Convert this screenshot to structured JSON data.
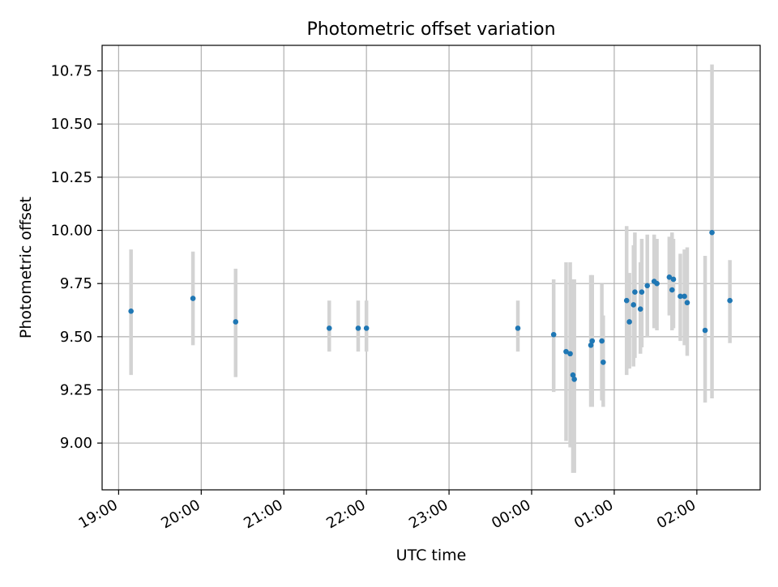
{
  "chart_data": {
    "type": "scatter",
    "title": "Photometric offset variation",
    "xlabel": "UTC time",
    "ylabel": "Photometric offset",
    "x_unit": "UTC clock time (hours after 00:00 of first day; values past 24 are next day)",
    "xlim": [
      "18:48",
      "02:46"
    ],
    "ylim": [
      8.78,
      10.87
    ],
    "x_ticks": [
      "19:00",
      "20:00",
      "21:00",
      "22:00",
      "23:00",
      "00:00",
      "01:00",
      "02:00"
    ],
    "y_ticks": [
      "9.00",
      "9.25",
      "9.50",
      "9.75",
      "10.00",
      "10.25",
      "10.50",
      "10.75"
    ],
    "grid": true,
    "marker_color": "#1f77b4",
    "errorbar_color": "#d3d3d3",
    "points": [
      {
        "t": "19:09",
        "y": 9.62,
        "ylo": 9.32,
        "yhi": 9.91
      },
      {
        "t": "19:54",
        "y": 9.68,
        "ylo": 9.46,
        "yhi": 9.9
      },
      {
        "t": "20:25",
        "y": 9.57,
        "ylo": 9.31,
        "yhi": 9.82
      },
      {
        "t": "21:33",
        "y": 9.54,
        "ylo": 9.43,
        "yhi": 9.67
      },
      {
        "t": "21:54",
        "y": 9.54,
        "ylo": 9.43,
        "yhi": 9.67
      },
      {
        "t": "22:00",
        "y": 9.54,
        "ylo": 9.43,
        "yhi": 9.67
      },
      {
        "t": "23:50",
        "y": 9.54,
        "ylo": 9.43,
        "yhi": 9.67
      },
      {
        "t": "00:16",
        "y": 9.51,
        "ylo": 9.24,
        "yhi": 9.77
      },
      {
        "t": "00:25",
        "y": 9.43,
        "ylo": 9.01,
        "yhi": 9.85
      },
      {
        "t": "00:28",
        "y": 9.42,
        "ylo": 8.98,
        "yhi": 9.85
      },
      {
        "t": "00:30",
        "y": 9.32,
        "ylo": 8.86,
        "yhi": 9.77
      },
      {
        "t": "00:31",
        "y": 9.3,
        "ylo": 8.86,
        "yhi": 9.77
      },
      {
        "t": "00:43",
        "y": 9.46,
        "ylo": 9.17,
        "yhi": 9.79
      },
      {
        "t": "00:44",
        "y": 9.48,
        "ylo": 9.17,
        "yhi": 9.79
      },
      {
        "t": "00:51",
        "y": 9.48,
        "ylo": 9.2,
        "yhi": 9.75
      },
      {
        "t": "00:52",
        "y": 9.38,
        "ylo": 9.17,
        "yhi": 9.6
      },
      {
        "t": "01:09",
        "y": 9.67,
        "ylo": 9.32,
        "yhi": 10.02
      },
      {
        "t": "01:11",
        "y": 9.57,
        "ylo": 9.35,
        "yhi": 9.8
      },
      {
        "t": "01:14",
        "y": 9.65,
        "ylo": 9.36,
        "yhi": 9.93
      },
      {
        "t": "01:15",
        "y": 9.71,
        "ylo": 9.4,
        "yhi": 9.99
      },
      {
        "t": "01:19",
        "y": 9.63,
        "ylo": 9.42,
        "yhi": 9.85
      },
      {
        "t": "01:20",
        "y": 9.71,
        "ylo": 9.45,
        "yhi": 9.96
      },
      {
        "t": "01:24",
        "y": 9.74,
        "ylo": 9.5,
        "yhi": 9.98
      },
      {
        "t": "01:29",
        "y": 9.76,
        "ylo": 9.54,
        "yhi": 9.98
      },
      {
        "t": "01:31",
        "y": 9.75,
        "ylo": 9.53,
        "yhi": 9.96
      },
      {
        "t": "01:40",
        "y": 9.78,
        "ylo": 9.6,
        "yhi": 9.97
      },
      {
        "t": "01:42",
        "y": 9.72,
        "ylo": 9.53,
        "yhi": 9.99
      },
      {
        "t": "01:43",
        "y": 9.77,
        "ylo": 9.54,
        "yhi": 9.96
      },
      {
        "t": "01:48",
        "y": 9.69,
        "ylo": 9.48,
        "yhi": 9.89
      },
      {
        "t": "01:51",
        "y": 9.69,
        "ylo": 9.46,
        "yhi": 9.91
      },
      {
        "t": "01:53",
        "y": 9.66,
        "ylo": 9.41,
        "yhi": 9.92
      },
      {
        "t": "02:06",
        "y": 9.53,
        "ylo": 9.19,
        "yhi": 9.88
      },
      {
        "t": "02:11",
        "y": 9.99,
        "ylo": 9.21,
        "yhi": 10.78
      },
      {
        "t": "02:24",
        "y": 9.67,
        "ylo": 9.47,
        "yhi": 9.86
      }
    ]
  }
}
